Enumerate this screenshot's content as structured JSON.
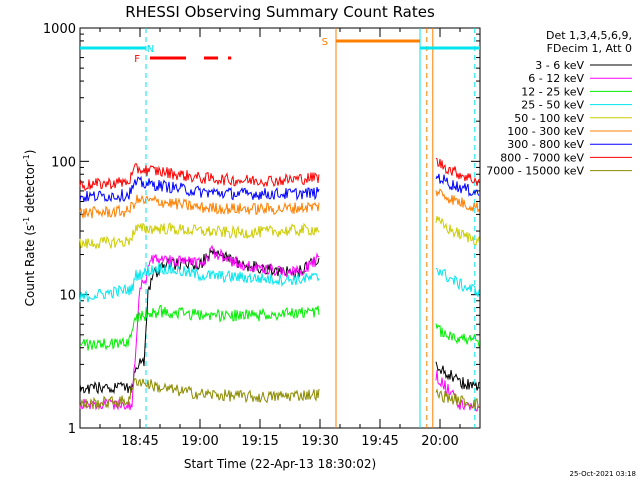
{
  "chart_data": {
    "type": "line",
    "title": "RHESSI Observing Summary Count Rates",
    "xlabel": "Start Time (22-Apr-13 18:30:02)",
    "ylabel_main": "Count Rate (s",
    "ylabel_sup1": "-1",
    "ylabel_mid": " detector",
    "ylabel_sup2": "-1",
    "ylabel_end": ")",
    "y_scale": "log",
    "ylim": [
      1,
      1000
    ],
    "xlim_minutes": [
      0,
      100
    ],
    "x_ticks": [
      {
        "label": "18:45",
        "minutes": 15
      },
      {
        "label": "19:00",
        "minutes": 30
      },
      {
        "label": "19:15",
        "minutes": 45
      },
      {
        "label": "19:30",
        "minutes": 60
      },
      {
        "label": "19:45",
        "minutes": 75
      },
      {
        "label": "20:00",
        "minutes": 90
      }
    ],
    "y_ticks": [
      {
        "label": "1",
        "value": 1
      },
      {
        "label": "10",
        "value": 10
      },
      {
        "label": "100",
        "value": 100
      },
      {
        "label": "1000",
        "value": 1000
      }
    ],
    "legend_header": [
      "Det 1,3,4,5,6,9,",
      "FDecim 1, Att 0"
    ],
    "timestamp": "25-Oct-2021 03:18",
    "flags": {
      "N": {
        "label": "N",
        "color": "#00e5ee",
        "intervals": [
          [
            0,
            16.5
          ],
          [
            85,
            100
          ]
        ]
      },
      "F": {
        "label": "F",
        "color": "#ff0000",
        "intervals": [
          [
            17.5,
            26.5
          ],
          [
            31,
            34.5
          ],
          [
            37,
            37.8
          ]
        ]
      },
      "S": {
        "label": "S",
        "color": "#ff7f00",
        "intervals": [
          [
            64,
            85
          ]
        ]
      }
    },
    "boundaries": [
      {
        "minutes": 16.5,
        "color": "#00e5ee",
        "style": "dashed"
      },
      {
        "minutes": 64,
        "color": "#ff7f00",
        "style": "solid"
      },
      {
        "minutes": 85,
        "color": "#00e5ee",
        "style": "solid"
      },
      {
        "minutes": 86.7,
        "color": "#ff7f00",
        "style": "dashed"
      },
      {
        "minutes": 88.2,
        "color": "#ff7f00",
        "style": "solid"
      },
      {
        "minutes": 98.7,
        "color": "#00e5ee",
        "style": "dashed"
      }
    ],
    "series": [
      {
        "name": "3 - 6 keV",
        "color": "#000000",
        "points": [
          [
            0,
            2
          ],
          [
            13,
            2
          ],
          [
            14,
            3
          ],
          [
            16,
            3
          ],
          [
            17,
            10
          ],
          [
            18,
            14
          ],
          [
            22,
            17
          ],
          [
            30,
            17
          ],
          [
            33,
            21
          ],
          [
            40,
            17
          ],
          [
            50,
            15
          ],
          [
            55,
            15
          ],
          [
            58,
            17
          ],
          [
            60,
            19
          ],
          [
            60.5,
            null
          ],
          [
            88.5,
            null
          ],
          [
            89,
            3
          ],
          [
            95,
            2.2
          ],
          [
            100,
            2
          ]
        ]
      },
      {
        "name": "6 - 12 keV",
        "color": "#ff00ff",
        "points": [
          [
            0,
            1.5
          ],
          [
            13,
            1.5
          ],
          [
            15,
            12
          ],
          [
            16.5,
            13
          ],
          [
            17,
            16
          ],
          [
            18,
            19
          ],
          [
            22,
            18
          ],
          [
            30,
            17
          ],
          [
            33,
            21
          ],
          [
            40,
            17
          ],
          [
            50,
            15
          ],
          [
            55,
            15
          ],
          [
            58,
            17
          ],
          [
            60,
            19
          ],
          [
            60.5,
            null
          ],
          [
            88.5,
            null
          ],
          [
            89,
            2.5
          ],
          [
            95,
            1.5
          ],
          [
            100,
            1.4
          ]
        ]
      },
      {
        "name": "12 - 25 keV",
        "color": "#00ee00",
        "points": [
          [
            0,
            4.2
          ],
          [
            12,
            4.3
          ],
          [
            13.5,
            6.5
          ],
          [
            16,
            7
          ],
          [
            20,
            7.5
          ],
          [
            30,
            7
          ],
          [
            45,
            7
          ],
          [
            60,
            7.5
          ],
          [
            60.5,
            null
          ],
          [
            88.5,
            null
          ],
          [
            89,
            5.5
          ],
          [
            94,
            4.8
          ],
          [
            100,
            4.5
          ]
        ]
      },
      {
        "name": "25 - 50 keV",
        "color": "#00e5ee",
        "points": [
          [
            0,
            9.5
          ],
          [
            13,
            11
          ],
          [
            14,
            14
          ],
          [
            20,
            16
          ],
          [
            30,
            14
          ],
          [
            40,
            13.5
          ],
          [
            50,
            13
          ],
          [
            55,
            13
          ],
          [
            60,
            13.5
          ],
          [
            60.5,
            null
          ],
          [
            88.5,
            null
          ],
          [
            89,
            16
          ],
          [
            92,
            13.5
          ],
          [
            96,
            11.5
          ],
          [
            100,
            10.5
          ]
        ]
      },
      {
        "name": "50 - 100 keV",
        "color": "#cccc00",
        "points": [
          [
            0,
            24
          ],
          [
            12,
            25
          ],
          [
            14,
            31
          ],
          [
            20,
            31.5
          ],
          [
            30,
            30
          ],
          [
            40,
            29
          ],
          [
            50,
            30
          ],
          [
            60,
            31
          ],
          [
            60.5,
            null
          ],
          [
            88.5,
            null
          ],
          [
            89,
            36
          ],
          [
            93,
            30
          ],
          [
            97,
            27
          ],
          [
            100,
            25.5
          ]
        ]
      },
      {
        "name": "100 - 300 keV",
        "color": "#ff7f00",
        "points": [
          [
            0,
            41
          ],
          [
            12,
            42
          ],
          [
            14,
            51
          ],
          [
            20,
            50
          ],
          [
            30,
            45
          ],
          [
            40,
            44
          ],
          [
            50,
            44
          ],
          [
            60,
            46
          ],
          [
            60.5,
            null
          ],
          [
            88.5,
            null
          ],
          [
            89,
            60
          ],
          [
            93,
            52
          ],
          [
            97,
            47
          ],
          [
            100,
            45
          ]
        ]
      },
      {
        "name": "300 - 800 keV",
        "color": "#0000ff",
        "points": [
          [
            0,
            54
          ],
          [
            12,
            56
          ],
          [
            14,
            69
          ],
          [
            20,
            66
          ],
          [
            30,
            59
          ],
          [
            40,
            57
          ],
          [
            50,
            57
          ],
          [
            60,
            58
          ],
          [
            60.5,
            null
          ],
          [
            88.5,
            null
          ],
          [
            89,
            78
          ],
          [
            93,
            67
          ],
          [
            97,
            61
          ],
          [
            100,
            58
          ]
        ]
      },
      {
        "name": "800 - 7000 keV",
        "color": "#ff0000",
        "points": [
          [
            0,
            66
          ],
          [
            12,
            70
          ],
          [
            14,
            88
          ],
          [
            20,
            84
          ],
          [
            30,
            75
          ],
          [
            40,
            72
          ],
          [
            50,
            72
          ],
          [
            60,
            76
          ],
          [
            60.5,
            null
          ],
          [
            88.5,
            null
          ],
          [
            89,
            100
          ],
          [
            93,
            85
          ],
          [
            97,
            76
          ],
          [
            100,
            70
          ]
        ]
      },
      {
        "name": "7000 - 15000 keV",
        "color": "#8b8b00",
        "points": [
          [
            0,
            1.5
          ],
          [
            12,
            1.6
          ],
          [
            14,
            2.3
          ],
          [
            20,
            2
          ],
          [
            30,
            1.8
          ],
          [
            45,
            1.7
          ],
          [
            60,
            1.8
          ],
          [
            60.5,
            null
          ],
          [
            88.5,
            null
          ],
          [
            89,
            1.8
          ],
          [
            95,
            1.6
          ],
          [
            100,
            1.5
          ]
        ]
      }
    ]
  }
}
